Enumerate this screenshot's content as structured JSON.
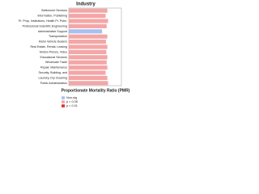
{
  "chart_data": {
    "type": "barh",
    "title": "Industry",
    "xlabel": "Proportionate Mortality Ratio (PMR)",
    "categories": [
      "Settlement Services",
      "Information, Publishing",
      "Pr. Prop. Institutions, Health Pr. Pubs.",
      "Professional Scientific Engineering",
      "Administrative Support",
      "Transportation",
      "Motor Vehicle Dealers",
      "Real Estate, Rental, Leasing",
      "Motion Picture, Video",
      "Educational Services",
      "Wholesale Trade",
      "Repair, Maintenance",
      "Security, Building, and",
      "Laundry, Dry Cleaning",
      "Public Administration"
    ],
    "values": [
      1.1,
      1.05,
      1.12,
      1.08,
      0.95,
      1.1,
      1.06,
      1.1,
      1.07,
      1.1,
      1.08,
      1.1,
      1.05,
      1.1,
      1.12
    ],
    "colors": [
      "#f4a6a6",
      "#f4a6a6",
      "#f4a6a6",
      "#f4a6a6",
      "#a8bff0",
      "#f4a6a6",
      "#f4a6a6",
      "#f4a6a6",
      "#f4a6a6",
      "#f4a6a6",
      "#f4a6a6",
      "#f4a6a6",
      "#f4a6a6",
      "#f4a6a6",
      "#f4a6a6"
    ],
    "xlim": [
      0,
      1.5
    ],
    "legend": [
      {
        "name": "Non-sig",
        "color": "#a8bff0"
      },
      {
        "name": "p < 0.05",
        "color": "#f4a6a6"
      },
      {
        "name": "p < 0.01",
        "color": "#e03030"
      }
    ]
  }
}
